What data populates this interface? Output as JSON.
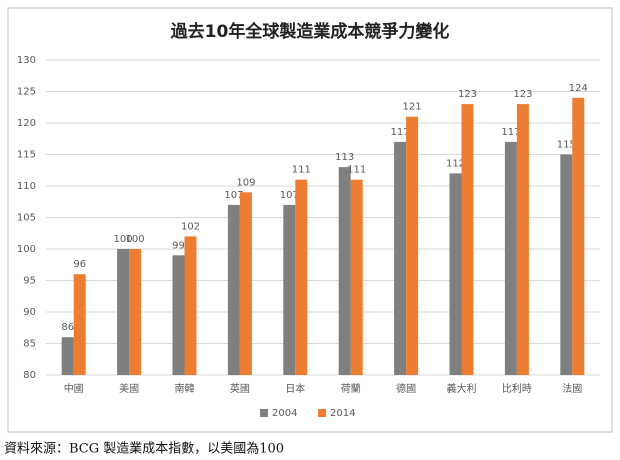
{
  "chart_data": {
    "type": "bar",
    "title": "過去10年全球製造業成本競爭力變化",
    "categories": [
      "中國",
      "美國",
      "南韓",
      "英國",
      "日本",
      "荷蘭",
      "德國",
      "義大利",
      "比利時",
      "法國"
    ],
    "series": [
      {
        "name": "2004",
        "color": "#7f7f7f",
        "values": [
          86,
          100,
          99,
          107,
          107,
          113,
          117,
          112,
          117,
          115
        ]
      },
      {
        "name": "2014",
        "color": "#ed7d31",
        "values": [
          96,
          100,
          102,
          109,
          111,
          111,
          121,
          123,
          123,
          124
        ]
      }
    ],
    "ylim": [
      80,
      130
    ],
    "yticks": [
      80,
      85,
      90,
      95,
      100,
      105,
      110,
      115,
      120,
      125,
      130
    ],
    "grid": true,
    "legend": "bottom",
    "source": "資料來源：BCG 製造業成本指數，以美國為100"
  }
}
